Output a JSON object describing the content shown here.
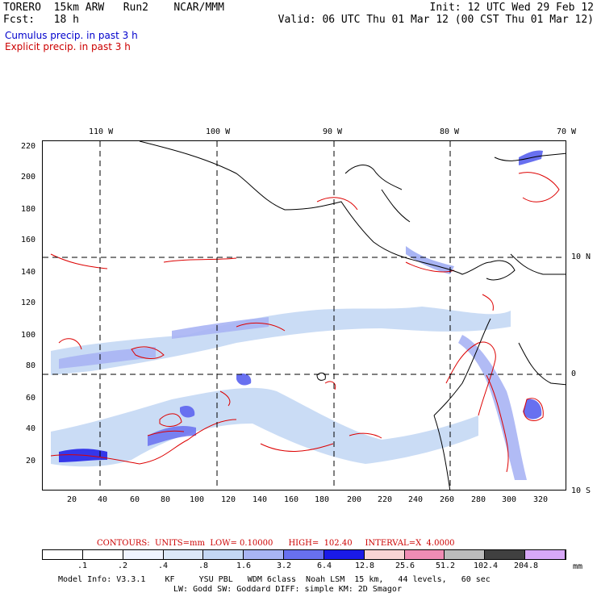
{
  "header": {
    "line1_left": "TORERO  15km ARW   Run2    NCAR/MMM",
    "line1_right": "Init: 12 UTC Wed 29 Feb 12",
    "line2_left": "Fcst:   18 h",
    "line2_right": "Valid: 06 UTC Thu 01 Mar 12 (00 CST Thu 01 Mar 12)",
    "cumulus": "Cumulus precip. in past 3 h",
    "explicit": "Explicit precip. in past 3 h"
  },
  "axes": {
    "top_lon": [
      "110 W",
      "100 W",
      "90 W",
      "80 W",
      "70 W"
    ],
    "right_lat": [
      "10 N",
      "0",
      "10 S"
    ],
    "left_y": [
      "220",
      "200",
      "180",
      "160",
      "140",
      "120",
      "100",
      "80",
      "60",
      "40",
      "20"
    ],
    "bottom_x": [
      "20",
      "40",
      "60",
      "80",
      "100",
      "120",
      "140",
      "160",
      "180",
      "200",
      "220",
      "240",
      "260",
      "280",
      "300",
      "320"
    ]
  },
  "contour_info": "CONTOURS:  UNITS=mm  LOW= 0.10000      HIGH=  102.40     INTERVAL=X  4.0000",
  "legend": {
    "labels": [
      ".1",
      ".2",
      ".4",
      ".8",
      "1.6",
      "3.2",
      "6.4",
      "12.8",
      "25.6",
      "51.2",
      "102.4",
      "204.8"
    ],
    "unit": "mm",
    "colors": [
      "#ffffff",
      "#ffffff",
      "#f0f4ff",
      "#dce8f8",
      "#c4d8f4",
      "#a8b4f4",
      "#6870f0",
      "#1a1ae8",
      "#f8d4d4",
      "#f08cb4",
      "#bcbcbc",
      "#404040",
      "#d8a8f8"
    ]
  },
  "footer": {
    "line1": "Model Info: V3.3.1    KF     YSU PBL   WDM 6class  Noah LSM  15 km,   44 levels,   60 sec",
    "line2": "LW: Godd SW: Goddard DIFF: simple KM: 2D Smagor"
  }
}
